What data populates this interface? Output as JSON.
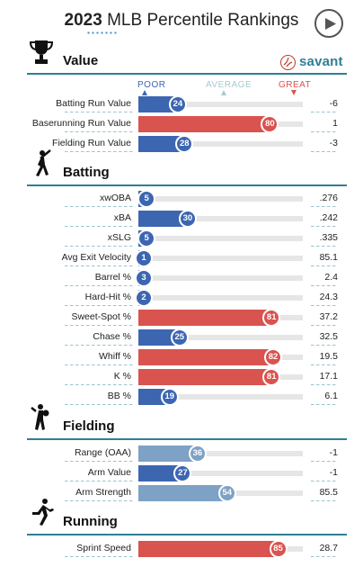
{
  "header": {
    "year": "2023",
    "title_rest": "MLB Percentile Rankings",
    "play_icon": "play-icon"
  },
  "brand": {
    "text": "savant",
    "icon": "baseball-icon"
  },
  "legend": {
    "poor": "POOR",
    "average": "AVERAGE",
    "great": "GREAT"
  },
  "colors": {
    "accent": "#2e7f94",
    "poor": "#3d66b1",
    "average": "#a9c9d1",
    "great": "#d9534f"
  },
  "sections": [
    {
      "title": "Value",
      "icon": "trophy-icon",
      "rows": [
        {
          "label": "Batting Run Value",
          "percentile": 24,
          "value": "-6"
        },
        {
          "label": "Baserunning Run Value",
          "percentile": 80,
          "value": "1"
        },
        {
          "label": "Fielding Run Value",
          "percentile": 28,
          "value": "-3"
        }
      ]
    },
    {
      "title": "Batting",
      "icon": "batter-icon",
      "rows": [
        {
          "label": "xwOBA",
          "percentile": 5,
          "value": ".276"
        },
        {
          "label": "xBA",
          "percentile": 30,
          "value": ".242"
        },
        {
          "label": "xSLG",
          "percentile": 5,
          "value": ".335"
        },
        {
          "label": "Avg Exit Velocity",
          "percentile": 1,
          "value": "85.1"
        },
        {
          "label": "Barrel %",
          "percentile": 3,
          "value": "2.4"
        },
        {
          "label": "Hard-Hit %",
          "percentile": 2,
          "value": "24.3"
        },
        {
          "label": "Sweet-Spot %",
          "percentile": 81,
          "value": "37.2"
        },
        {
          "label": "Chase %",
          "percentile": 25,
          "value": "32.5"
        },
        {
          "label": "Whiff %",
          "percentile": 82,
          "value": "19.5"
        },
        {
          "label": "K %",
          "percentile": 81,
          "value": "17.1"
        },
        {
          "label": "BB %",
          "percentile": 19,
          "value": "6.1"
        }
      ]
    },
    {
      "title": "Fielding",
      "icon": "fielder-icon",
      "rows": [
        {
          "label": "Range (OAA)",
          "percentile": 36,
          "value": "-1"
        },
        {
          "label": "Arm Value",
          "percentile": 27,
          "value": "-1"
        },
        {
          "label": "Arm Strength",
          "percentile": 54,
          "value": "85.5"
        }
      ]
    },
    {
      "title": "Running",
      "icon": "runner-icon",
      "rows": [
        {
          "label": "Sprint Speed",
          "percentile": 85,
          "value": "28.7"
        }
      ]
    }
  ]
}
